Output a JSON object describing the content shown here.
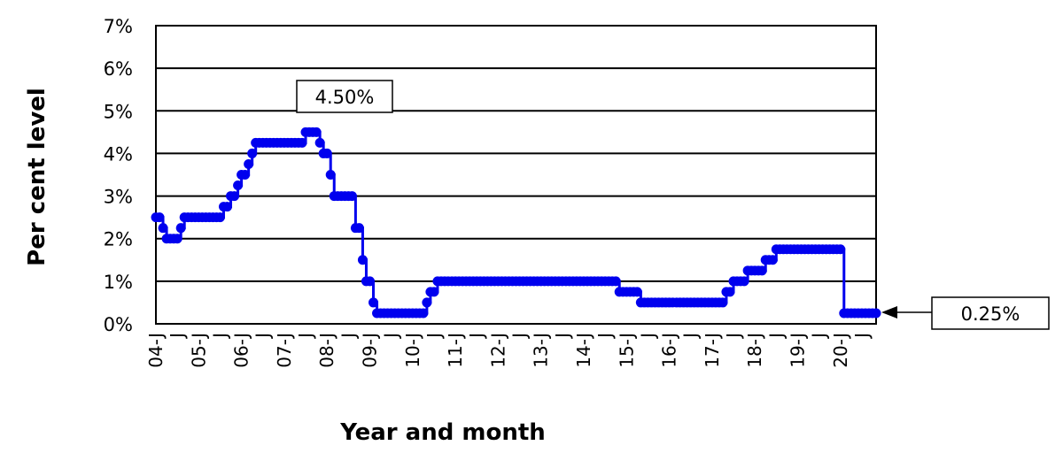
{
  "chart_data": {
    "type": "line",
    "title": "",
    "xlabel": "Year and month",
    "ylabel": "Per cent level",
    "ylim": [
      0,
      7
    ],
    "yticks": [
      "0%",
      "1%",
      "2%",
      "3%",
      "4%",
      "5%",
      "6%",
      "7%"
    ],
    "xticks": [
      "04-J",
      "05-J",
      "06-J",
      "07-J",
      "08-J",
      "09-J",
      "10-J",
      "11-J",
      "12-J",
      "13-J",
      "14-J",
      "15-J",
      "16-J",
      "17-J",
      "18-J",
      "19-J",
      "20-J"
    ],
    "x_minor_tick_label": "J",
    "x_range_months": [
      0,
      202
    ],
    "grid": true,
    "series": [
      {
        "color": "#0000ee",
        "steps": [
          [
            0,
            2.5
          ],
          [
            2,
            2.25
          ],
          [
            3,
            2.0
          ],
          [
            7,
            2.25
          ],
          [
            8,
            2.5
          ],
          [
            19,
            2.75
          ],
          [
            21,
            3.0
          ],
          [
            23,
            3.25
          ],
          [
            24,
            3.5
          ],
          [
            26,
            3.75
          ],
          [
            27,
            4.0
          ],
          [
            28,
            4.25
          ],
          [
            42,
            4.5
          ],
          [
            46,
            4.25
          ],
          [
            47,
            4.0
          ],
          [
            49,
            3.5
          ],
          [
            50,
            3.0
          ],
          [
            56,
            2.25
          ],
          [
            58,
            1.5
          ],
          [
            59,
            1.0
          ],
          [
            61,
            0.5
          ],
          [
            62,
            0.25
          ],
          [
            76,
            0.5
          ],
          [
            77,
            0.75
          ],
          [
            79,
            1.0
          ],
          [
            130,
            0.75
          ],
          [
            136,
            0.5
          ],
          [
            160,
            0.75
          ],
          [
            162,
            1.0
          ],
          [
            166,
            1.25
          ],
          [
            171,
            1.5
          ],
          [
            174,
            1.75
          ],
          [
            193,
            0.25
          ],
          [
            202,
            0.25
          ]
        ]
      }
    ],
    "annotations": [
      {
        "text": "4.50%",
        "x": 46,
        "y": 4.5
      },
      {
        "text": "0.25%",
        "x": 202,
        "y": 0.25
      }
    ]
  }
}
